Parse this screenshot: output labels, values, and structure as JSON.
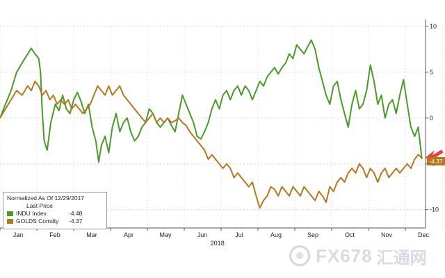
{
  "chart_data": {
    "type": "line",
    "title": "",
    "year_label": "2018",
    "ylim": [
      -12,
      10
    ],
    "yticks": [
      10,
      5,
      0,
      -5,
      -10
    ],
    "months": [
      "Jan",
      "Feb",
      "Mar",
      "Apr",
      "May",
      "Jun",
      "Jul",
      "Aug",
      "Sep",
      "Oct",
      "Nov",
      "Dec"
    ],
    "grid": true,
    "legend": {
      "header": "Normalized As Of 12/29/2017",
      "price_header": "Last Price",
      "entries": [
        {
          "name": "INDU Index",
          "value": "-4.48",
          "color": "#4a9a2a"
        },
        {
          "name": "GOLDS Comdty",
          "value": "-4.37",
          "color": "#b5771c"
        }
      ]
    },
    "last_value_label": "-4.37",
    "series": [
      {
        "name": "INDU Index",
        "color": "#4a9a2a",
        "points": [
          [
            0.0,
            0.0
          ],
          [
            0.15,
            1.5
          ],
          [
            0.3,
            3.0
          ],
          [
            0.45,
            5.0
          ],
          [
            0.6,
            6.0
          ],
          [
            0.75,
            7.0
          ],
          [
            0.85,
            7.6
          ],
          [
            0.95,
            7.0
          ],
          [
            1.05,
            6.5
          ],
          [
            1.1,
            5.0
          ],
          [
            1.15,
            0.5
          ],
          [
            1.2,
            -2.5
          ],
          [
            1.28,
            -3.5
          ],
          [
            1.38,
            -0.5
          ],
          [
            1.5,
            1.5
          ],
          [
            1.6,
            0.8
          ],
          [
            1.7,
            2.5
          ],
          [
            1.8,
            1.0
          ],
          [
            1.9,
            0.5
          ],
          [
            2.0,
            2.0
          ],
          [
            2.1,
            2.8
          ],
          [
            2.2,
            1.8
          ],
          [
            2.3,
            0.5
          ],
          [
            2.4,
            1.5
          ],
          [
            2.5,
            -1.0
          ],
          [
            2.6,
            -2.5
          ],
          [
            2.68,
            -4.8
          ],
          [
            2.75,
            -3.0
          ],
          [
            2.85,
            -2.0
          ],
          [
            2.95,
            -3.8
          ],
          [
            3.05,
            -1.0
          ],
          [
            3.15,
            0.5
          ],
          [
            3.25,
            -1.5
          ],
          [
            3.35,
            -0.5
          ],
          [
            3.45,
            0.0
          ],
          [
            3.55,
            -1.5
          ],
          [
            3.65,
            -2.5
          ],
          [
            3.75,
            -2.0
          ],
          [
            3.85,
            -1.0
          ],
          [
            3.95,
            -0.5
          ],
          [
            4.05,
            1.0
          ],
          [
            4.15,
            0.5
          ],
          [
            4.25,
            -0.5
          ],
          [
            4.35,
            -1.0
          ],
          [
            4.45,
            -0.5
          ],
          [
            4.55,
            0.0
          ],
          [
            4.65,
            -0.8
          ],
          [
            4.75,
            -1.5
          ],
          [
            4.85,
            0.5
          ],
          [
            4.95,
            2.5
          ],
          [
            5.05,
            1.5
          ],
          [
            5.15,
            0.5
          ],
          [
            5.25,
            -0.5
          ],
          [
            5.35,
            -2.0
          ],
          [
            5.45,
            -2.3
          ],
          [
            5.55,
            -1.5
          ],
          [
            5.65,
            -0.5
          ],
          [
            5.75,
            1.0
          ],
          [
            5.85,
            2.0
          ],
          [
            5.95,
            1.0
          ],
          [
            6.05,
            2.5
          ],
          [
            6.15,
            3.0
          ],
          [
            6.25,
            2.0
          ],
          [
            6.35,
            3.0
          ],
          [
            6.45,
            3.5
          ],
          [
            6.55,
            2.5
          ],
          [
            6.65,
            3.5
          ],
          [
            6.75,
            3.0
          ],
          [
            6.85,
            2.0
          ],
          [
            6.95,
            3.0
          ],
          [
            7.05,
            4.0
          ],
          [
            7.15,
            3.5
          ],
          [
            7.25,
            4.5
          ],
          [
            7.35,
            5.0
          ],
          [
            7.45,
            5.5
          ],
          [
            7.55,
            4.8
          ],
          [
            7.65,
            5.5
          ],
          [
            7.75,
            6.0
          ],
          [
            7.85,
            7.0
          ],
          [
            7.95,
            6.5
          ],
          [
            8.05,
            8.0
          ],
          [
            8.15,
            7.5
          ],
          [
            8.25,
            7.0
          ],
          [
            8.35,
            7.8
          ],
          [
            8.45,
            8.5
          ],
          [
            8.55,
            7.5
          ],
          [
            8.65,
            5.5
          ],
          [
            8.75,
            4.0
          ],
          [
            8.85,
            2.5
          ],
          [
            8.95,
            1.5
          ],
          [
            9.05,
            3.5
          ],
          [
            9.15,
            4.0
          ],
          [
            9.25,
            2.0
          ],
          [
            9.35,
            0.5
          ],
          [
            9.45,
            -1.0
          ],
          [
            9.55,
            1.5
          ],
          [
            9.65,
            3.0
          ],
          [
            9.75,
            1.0
          ],
          [
            9.85,
            1.5
          ],
          [
            9.95,
            3.0
          ],
          [
            10.05,
            5.8
          ],
          [
            10.15,
            4.0
          ],
          [
            10.25,
            1.5
          ],
          [
            10.35,
            2.5
          ],
          [
            10.45,
            0.0
          ],
          [
            10.55,
            1.5
          ],
          [
            10.65,
            2.0
          ],
          [
            10.75,
            0.5
          ],
          [
            10.85,
            2.5
          ],
          [
            10.95,
            4.2
          ],
          [
            11.05,
            1.5
          ],
          [
            11.15,
            -1.0
          ],
          [
            11.25,
            -2.0
          ],
          [
            11.35,
            -1.0
          ],
          [
            11.45,
            -4.48
          ]
        ]
      },
      {
        "name": "GOLDS Comdty",
        "color": "#b5771c",
        "points": [
          [
            0.0,
            0.0
          ],
          [
            0.15,
            1.0
          ],
          [
            0.3,
            2.0
          ],
          [
            0.45,
            3.0
          ],
          [
            0.6,
            2.5
          ],
          [
            0.75,
            3.5
          ],
          [
            0.85,
            3.0
          ],
          [
            0.95,
            4.0
          ],
          [
            1.05,
            3.5
          ],
          [
            1.15,
            2.5
          ],
          [
            1.25,
            3.0
          ],
          [
            1.35,
            2.0
          ],
          [
            1.45,
            2.5
          ],
          [
            1.55,
            1.5
          ],
          [
            1.65,
            2.0
          ],
          [
            1.75,
            1.5
          ],
          [
            1.85,
            2.0
          ],
          [
            1.95,
            1.0
          ],
          [
            2.05,
            1.5
          ],
          [
            2.15,
            1.0
          ],
          [
            2.25,
            0.5
          ],
          [
            2.35,
            1.0
          ],
          [
            2.45,
            1.5
          ],
          [
            2.55,
            2.5
          ],
          [
            2.65,
            3.5
          ],
          [
            2.75,
            3.0
          ],
          [
            2.85,
            2.5
          ],
          [
            2.95,
            3.5
          ],
          [
            3.05,
            2.5
          ],
          [
            3.15,
            3.0
          ],
          [
            3.25,
            3.5
          ],
          [
            3.35,
            2.5
          ],
          [
            3.45,
            2.0
          ],
          [
            3.55,
            1.5
          ],
          [
            3.65,
            1.0
          ],
          [
            3.75,
            0.5
          ],
          [
            3.85,
            0.0
          ],
          [
            3.95,
            -0.5
          ],
          [
            4.05,
            0.0
          ],
          [
            4.15,
            0.5
          ],
          [
            4.25,
            -0.5
          ],
          [
            4.35,
            0.0
          ],
          [
            4.45,
            -0.5
          ],
          [
            4.55,
            0.0
          ],
          [
            4.65,
            -0.5
          ],
          [
            4.75,
            -0.3
          ],
          [
            4.85,
            0.0
          ],
          [
            4.95,
            -0.5
          ],
          [
            5.05,
            -0.8
          ],
          [
            5.15,
            -1.5
          ],
          [
            5.25,
            -2.0
          ],
          [
            5.35,
            -2.5
          ],
          [
            5.45,
            -3.0
          ],
          [
            5.55,
            -3.5
          ],
          [
            5.65,
            -4.5
          ],
          [
            5.75,
            -4.0
          ],
          [
            5.85,
            -4.5
          ],
          [
            5.95,
            -5.0
          ],
          [
            6.05,
            -5.5
          ],
          [
            6.15,
            -5.0
          ],
          [
            6.25,
            -5.5
          ],
          [
            6.35,
            -6.5
          ],
          [
            6.45,
            -6.0
          ],
          [
            6.55,
            -6.5
          ],
          [
            6.65,
            -7.0
          ],
          [
            6.75,
            -7.5
          ],
          [
            6.85,
            -7.0
          ],
          [
            6.95,
            -8.5
          ],
          [
            7.05,
            -9.8
          ],
          [
            7.15,
            -9.0
          ],
          [
            7.25,
            -8.5
          ],
          [
            7.35,
            -7.5
          ],
          [
            7.45,
            -7.8
          ],
          [
            7.55,
            -8.5
          ],
          [
            7.65,
            -7.5
          ],
          [
            7.75,
            -8.0
          ],
          [
            7.85,
            -8.5
          ],
          [
            7.95,
            -7.5
          ],
          [
            8.05,
            -8.0
          ],
          [
            8.15,
            -8.5
          ],
          [
            8.25,
            -7.5
          ],
          [
            8.35,
            -8.0
          ],
          [
            8.45,
            -8.5
          ],
          [
            8.55,
            -9.0
          ],
          [
            8.65,
            -8.0
          ],
          [
            8.75,
            -8.5
          ],
          [
            8.85,
            -9.2
          ],
          [
            8.95,
            -7.5
          ],
          [
            9.05,
            -8.0
          ],
          [
            9.15,
            -7.0
          ],
          [
            9.25,
            -6.5
          ],
          [
            9.35,
            -7.0
          ],
          [
            9.45,
            -6.0
          ],
          [
            9.55,
            -5.5
          ],
          [
            9.65,
            -6.0
          ],
          [
            9.75,
            -5.0
          ],
          [
            9.85,
            -5.5
          ],
          [
            9.95,
            -6.5
          ],
          [
            10.05,
            -5.5
          ],
          [
            10.15,
            -6.0
          ],
          [
            10.25,
            -7.0
          ],
          [
            10.35,
            -6.0
          ],
          [
            10.45,
            -5.5
          ],
          [
            10.55,
            -6.5
          ],
          [
            10.65,
            -6.0
          ],
          [
            10.75,
            -5.5
          ],
          [
            10.85,
            -6.0
          ],
          [
            10.95,
            -5.5
          ],
          [
            11.05,
            -5.0
          ],
          [
            11.15,
            -5.5
          ],
          [
            11.25,
            -4.5
          ],
          [
            11.35,
            -4.0
          ],
          [
            11.45,
            -4.37
          ]
        ]
      }
    ]
  },
  "watermark": {
    "text": "FX678",
    "text_cn": "汇通网"
  }
}
